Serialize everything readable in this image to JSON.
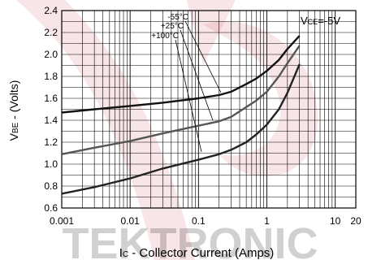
{
  "chart_data": {
    "type": "line",
    "title": "",
    "xlabel_main": "I",
    "xlabel_sub": "C",
    "xlabel_rest": " - Collector Current (Amps)",
    "ylabel_main": "V",
    "ylabel_sub": "BE",
    "ylabel_rest": " - (Volts)",
    "annotation_main": "V",
    "annotation_sub": "CE",
    "annotation_rest": "=-5V",
    "xscale": "log",
    "xlim": [
      0.001,
      20
    ],
    "ylim": [
      0.6,
      2.4
    ],
    "grid": true,
    "x_ticks": [
      {
        "value": 0.001,
        "label": "0.001"
      },
      {
        "value": 0.01,
        "label": "0.01"
      },
      {
        "value": 0.1,
        "label": "0.1"
      },
      {
        "value": 1,
        "label": "1"
      },
      {
        "value": 10,
        "label": "10"
      },
      {
        "value": 20,
        "label": "20"
      }
    ],
    "y_ticks": [
      {
        "value": 0.6,
        "label": "0.6"
      },
      {
        "value": 0.8,
        "label": "0.8"
      },
      {
        "value": 1.0,
        "label": "1.0"
      },
      {
        "value": 1.2,
        "label": "1.2"
      },
      {
        "value": 1.4,
        "label": "1.4"
      },
      {
        "value": 1.6,
        "label": "1.6"
      },
      {
        "value": 1.8,
        "label": "1.8"
      },
      {
        "value": 2.0,
        "label": "2.0"
      },
      {
        "value": 2.2,
        "label": "2.2"
      },
      {
        "value": 2.4,
        "label": "2.4"
      }
    ],
    "series": [
      {
        "name": "-55°C",
        "color": "#111111",
        "x": [
          0.001,
          0.003,
          0.01,
          0.03,
          0.1,
          0.2,
          0.3,
          0.5,
          0.7,
          1,
          1.5,
          2,
          3
        ],
        "y": [
          1.47,
          1.5,
          1.53,
          1.56,
          1.6,
          1.63,
          1.66,
          1.73,
          1.78,
          1.85,
          1.95,
          2.05,
          2.17
        ]
      },
      {
        "name": "+25°C",
        "color": "#555555",
        "x": [
          0.001,
          0.003,
          0.01,
          0.03,
          0.1,
          0.2,
          0.3,
          0.5,
          0.7,
          1,
          1.5,
          2,
          3
        ],
        "y": [
          1.09,
          1.15,
          1.21,
          1.28,
          1.35,
          1.39,
          1.43,
          1.52,
          1.58,
          1.66,
          1.8,
          1.92,
          2.08
        ]
      },
      {
        "name": "+100°C",
        "color": "#222222",
        "x": [
          0.001,
          0.003,
          0.01,
          0.03,
          0.1,
          0.2,
          0.3,
          0.5,
          0.7,
          1,
          1.5,
          2,
          3
        ],
        "y": [
          0.73,
          0.79,
          0.87,
          0.96,
          1.04,
          1.09,
          1.13,
          1.2,
          1.27,
          1.36,
          1.5,
          1.65,
          1.91
        ]
      }
    ],
    "series_label_colors": "#000000",
    "watermark": {
      "text": "TEKTRONIC",
      "color": "#cc3344"
    }
  }
}
